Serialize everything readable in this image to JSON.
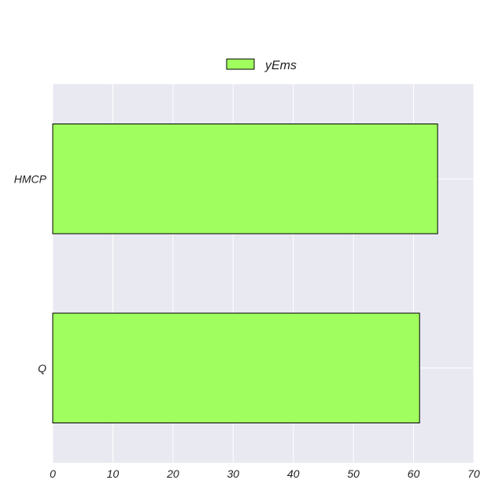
{
  "chart_data": {
    "type": "bar",
    "orientation": "horizontal",
    "categories": [
      "HMCP",
      "Q"
    ],
    "series": [
      {
        "name": "yEms",
        "values": [
          64,
          61
        ],
        "color": "#a0ff5f"
      }
    ],
    "xlim": [
      0,
      70
    ],
    "xticks": [
      0,
      10,
      20,
      30,
      40,
      50,
      60,
      70
    ],
    "title": "",
    "xlabel": "",
    "ylabel": "",
    "grid": true,
    "legend_position": "top-center",
    "plot_background": "#e8e9f1",
    "grid_color": "#ffffff"
  }
}
